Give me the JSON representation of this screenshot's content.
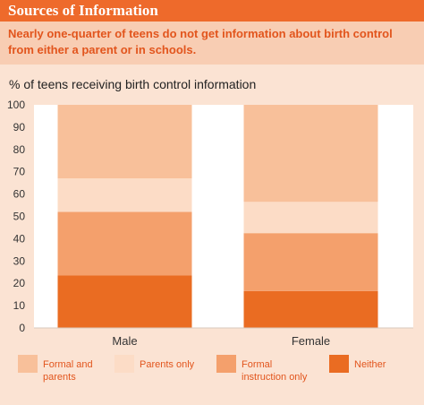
{
  "header": {
    "title": "Sources of Information",
    "subtitle": "Nearly one-quarter of teens do not get information about birth control from either a parent or in schools."
  },
  "chart_data": {
    "type": "bar",
    "stacked": true,
    "title": "% of teens receiving birth control information",
    "categories": [
      "Male",
      "Female"
    ],
    "ylim": [
      0,
      100
    ],
    "yticks": [
      0,
      10,
      20,
      30,
      40,
      50,
      60,
      70,
      80,
      90,
      100
    ],
    "series": [
      {
        "name": "Neither",
        "values": [
          23.5,
          16.5
        ],
        "color": "#ea6c22"
      },
      {
        "name": "Formal instruction only",
        "values": [
          28.5,
          26
        ],
        "color": "#f4a06c"
      },
      {
        "name": "Parents only",
        "values": [
          15,
          14
        ],
        "color": "#fcdcc6"
      },
      {
        "name": "Formal and parents",
        "values": [
          33,
          43.5
        ],
        "color": "#f8c09a"
      }
    ],
    "legend": [
      {
        "label": "Formal and\nparents",
        "color": "#f8c09a"
      },
      {
        "label": "Parents only",
        "color": "#fcdcc6"
      },
      {
        "label": "Formal\ninstruction only",
        "color": "#f4a06c"
      },
      {
        "label": "Neither",
        "color": "#ea6c22"
      }
    ],
    "legend_placement": "bottom"
  },
  "colors": {
    "title_bar": "#ee6a2b",
    "subtitle_band": "#f8cdb3",
    "background": "#fbe3d3",
    "plot_background": "#ffffff",
    "text_accent": "#e2551d"
  }
}
